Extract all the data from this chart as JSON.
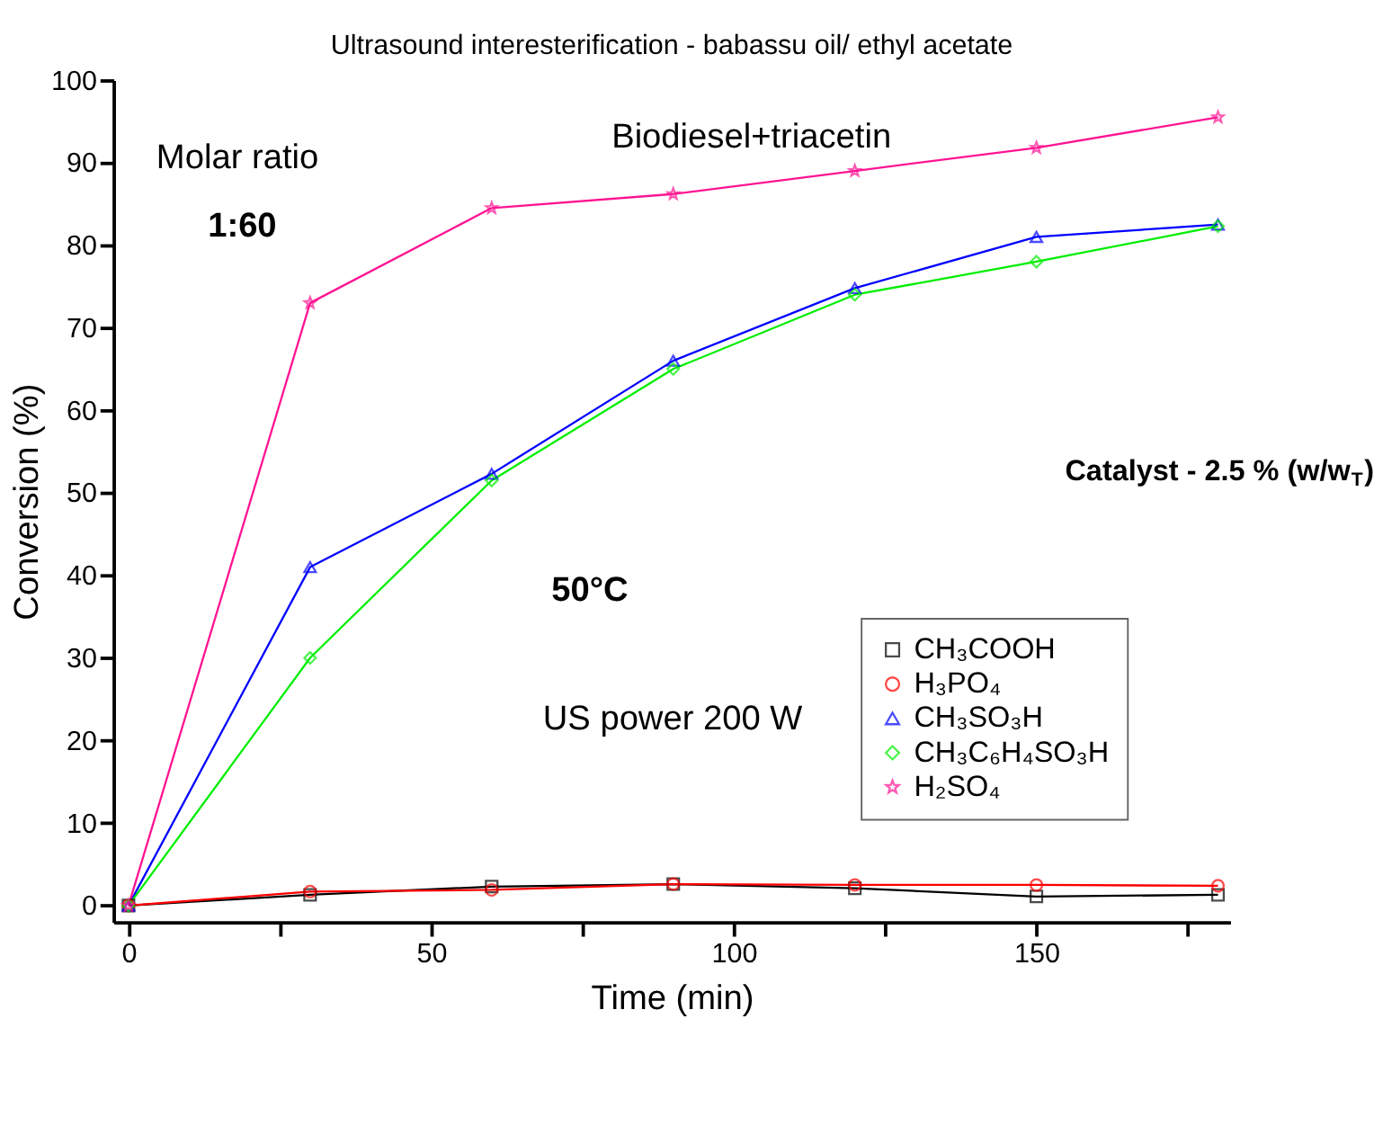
{
  "chart_data": {
    "type": "line",
    "title": "Ultrasound  interesterification - babassu oil/ ethyl acetate",
    "xlabel": "Time (min)",
    "ylabel": "Conversion (%)",
    "x": [
      0,
      30,
      60,
      90,
      120,
      150,
      180
    ],
    "series": [
      {
        "name": "CH₃COOH",
        "color": "#000000",
        "marker": "square",
        "values": [
          0,
          1.3,
          2.3,
          2.6,
          2.1,
          1.1,
          1.3
        ]
      },
      {
        "name": "H₃PO₄",
        "color": "#ff0000",
        "marker": "circle",
        "values": [
          0,
          1.7,
          1.9,
          2.6,
          2.5,
          2.5,
          2.4
        ]
      },
      {
        "name": "CH₃SO₃H",
        "color": "#0000ff",
        "marker": "triangle",
        "values": [
          0,
          41,
          52.3,
          66,
          74.8,
          81,
          82.5
        ]
      },
      {
        "name": "CH₃C₆H₄SO₃H",
        "color": "#00ee00",
        "marker": "diamond",
        "values": [
          0,
          30,
          51.5,
          65,
          74,
          78,
          82.3
        ]
      },
      {
        "name": "H₂SO₄",
        "color": "#ff1493",
        "marker": "star",
        "values": [
          0,
          73,
          84.5,
          86.2,
          89,
          91.8,
          95.5
        ]
      }
    ],
    "xlim": [
      -2.5,
      182
    ],
    "ylim": [
      -2,
      100
    ],
    "xticks": [
      0,
      {
        "value": 25,
        "label": null
      },
      50,
      {
        "value": 75,
        "label": null
      },
      100,
      {
        "value": 125,
        "label": null
      },
      150,
      {
        "value": 175,
        "label": null
      }
    ],
    "yticks": [
      0,
      10,
      20,
      30,
      40,
      50,
      60,
      70,
      80,
      90,
      100
    ],
    "annotations": [
      "Molar ratio",
      "1:60",
      "Biodiesel+triacetin",
      "Catalyst  -  2.5 % (w/w$_{T}$)",
      "50°C",
      "US power 200 W"
    ],
    "legend": "bottom right",
    "grid": false,
    "line_style": "solid"
  }
}
